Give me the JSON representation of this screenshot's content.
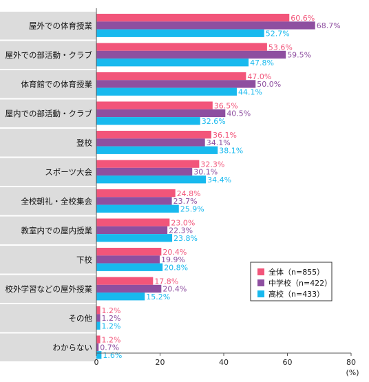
{
  "chart_data": {
    "type": "bar",
    "orientation": "horizontal",
    "categories": [
      "屋外での体育授業",
      "屋外での部活動・クラブ",
      "体育館での体育授業",
      "屋内での部活動・クラブ",
      "登校",
      "スポーツ大会",
      "全校朝礼・全校集会",
      "教室内での屋内授業",
      "下校",
      "校外学習などの屋外授業",
      "その他",
      "わからない"
    ],
    "series": [
      {
        "name": "全体（n=855）",
        "color": "#f2557a",
        "values": [
          60.6,
          53.6,
          47.0,
          36.5,
          36.1,
          32.3,
          24.8,
          23.0,
          20.4,
          17.8,
          1.2,
          1.2
        ],
        "labels": [
          "60.6%",
          "53.6%",
          "47.0%",
          "36.5%",
          "36.1%",
          "32.3%",
          "24.8%",
          "23.0%",
          "20.4%",
          "17.8%",
          "1.2%",
          "1.2%"
        ]
      },
      {
        "name": "中学校（n=422）",
        "color": "#8e4fa0",
        "values": [
          68.7,
          59.5,
          50.0,
          40.5,
          34.1,
          30.1,
          23.7,
          22.3,
          19.9,
          20.4,
          1.2,
          0.7
        ],
        "labels": [
          "68.7%",
          "59.5%",
          "50.0%",
          "40.5%",
          "34.1%",
          "30.1%",
          "23.7%",
          "22.3%",
          "19.9%",
          "20.4%",
          "1.2%",
          "0.7%"
        ]
      },
      {
        "name": "高校（n=433）",
        "color": "#18b9ee",
        "values": [
          52.7,
          47.8,
          44.1,
          32.6,
          38.1,
          34.4,
          25.9,
          23.8,
          20.8,
          15.2,
          1.2,
          1.6
        ],
        "labels": [
          "52.7%",
          "47.8%",
          "44.1%",
          "32.6%",
          "38.1%",
          "34.4%",
          "25.9%",
          "23.8%",
          "20.8%",
          "15.2%",
          "1.2%",
          "1.6%"
        ]
      }
    ],
    "xlim": [
      0,
      80
    ],
    "xticks": [
      0,
      20,
      40,
      60,
      80
    ],
    "xtick_labels": [
      "0",
      "20",
      "40",
      "60",
      "80"
    ],
    "unit_label": "(%)",
    "grid": false,
    "legend_position": "bottom-right",
    "category_band_color": "#dcdcdc"
  }
}
